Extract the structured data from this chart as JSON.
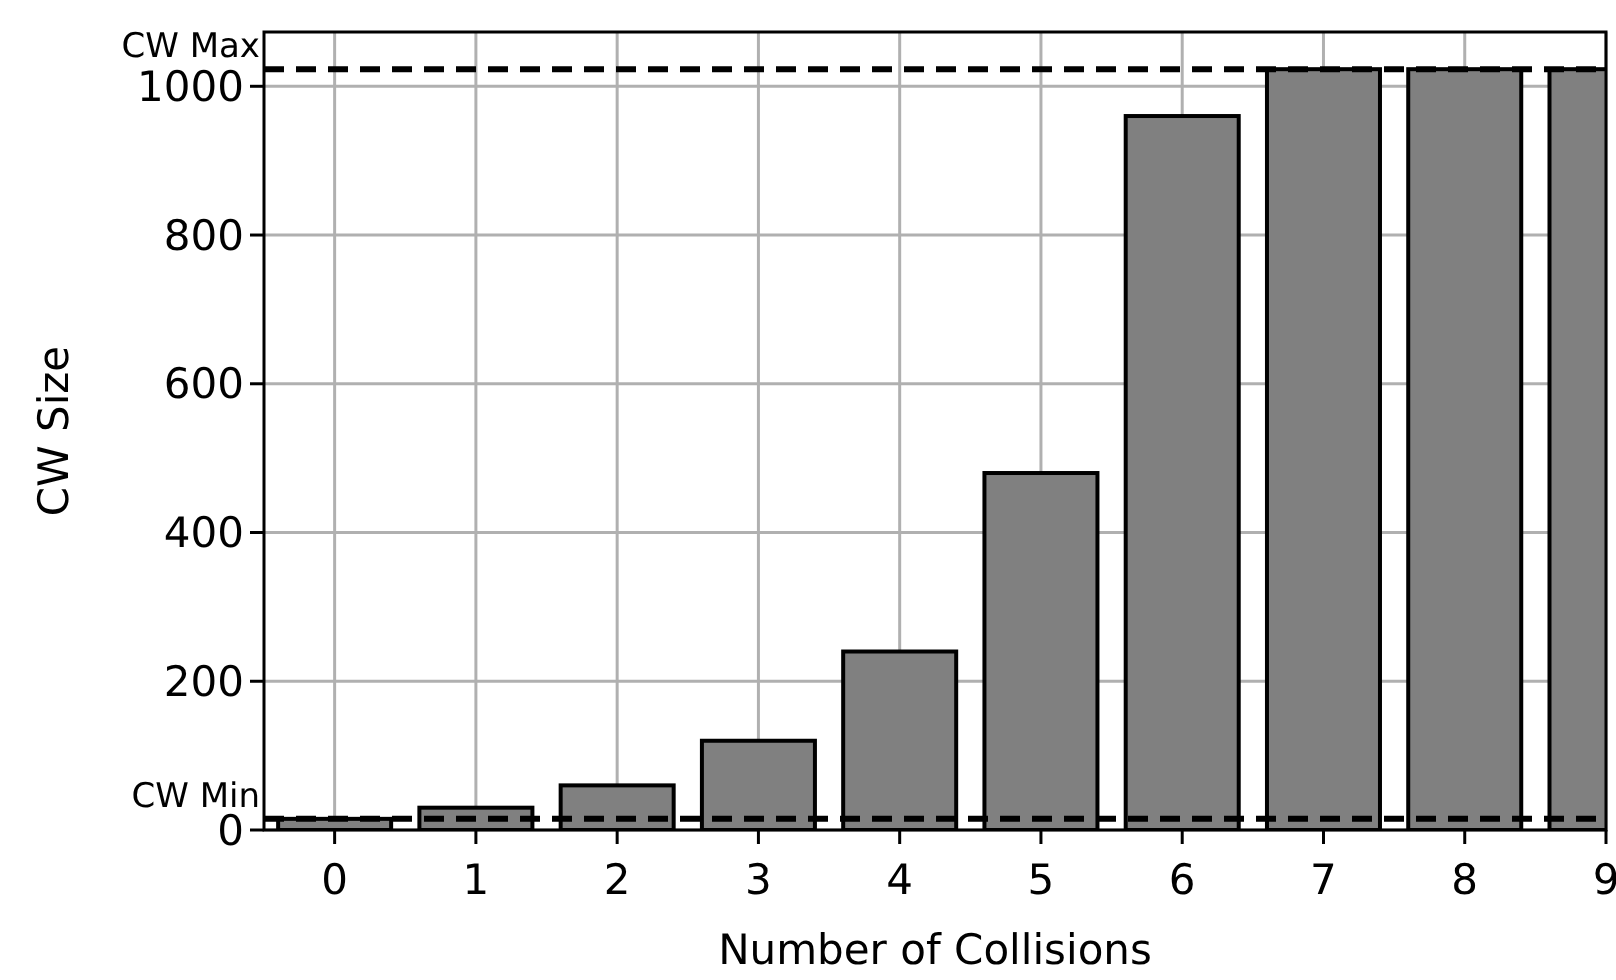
{
  "chart_data": {
    "type": "bar",
    "xlabel": "Number of Collisions",
    "ylabel": "CW Size",
    "x": [
      0,
      1,
      2,
      3,
      4,
      5,
      6,
      7,
      8,
      9
    ],
    "values": [
      15,
      30,
      60,
      120,
      240,
      480,
      960,
      1023,
      1023,
      1023
    ],
    "color": "#808080",
    "xlim": [
      -0.5,
      9
    ],
    "xticks": [
      0,
      1,
      2,
      3,
      4,
      5,
      6,
      7,
      8,
      9
    ],
    "ylim": [
      0,
      1073
    ],
    "yticks": [
      0,
      200,
      400,
      600,
      800,
      1000
    ],
    "grid": true,
    "ref_lines": [
      {
        "axis": "y",
        "value": 15,
        "label": "CW Min",
        "color": "#000000",
        "line_style": "dashed"
      },
      {
        "axis": "y",
        "value": 1023,
        "label": "CW Max",
        "color": "#000000",
        "line_style": "dashed"
      }
    ]
  }
}
